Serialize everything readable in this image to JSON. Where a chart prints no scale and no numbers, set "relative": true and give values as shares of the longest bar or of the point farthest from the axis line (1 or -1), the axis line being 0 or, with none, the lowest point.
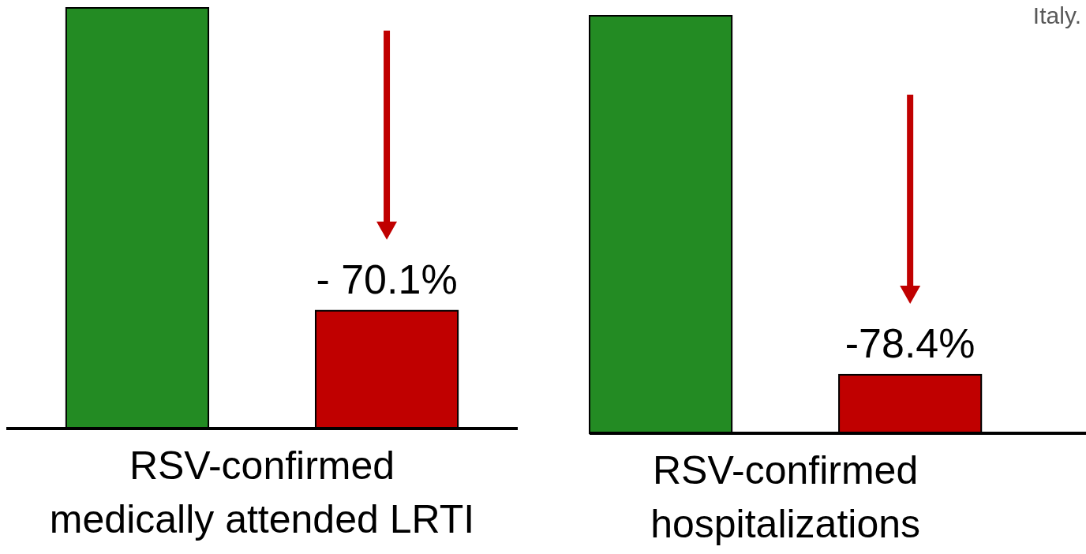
{
  "chart_data": [
    {
      "type": "bar",
      "categories": [
        null,
        null
      ],
      "values": [
        1,
        0.28
      ],
      "colors": [
        "#238b23",
        "#c00000"
      ],
      "relative": true,
      "xlabel": "RSV-confirmed\nmedically attended LRTI",
      "annotations": [
        "- 70.1%"
      ]
    },
    {
      "type": "bar",
      "categories": [
        null,
        null
      ],
      "values": [
        1,
        0.14
      ],
      "colors": [
        "#238b23",
        "#c00000"
      ],
      "relative": true,
      "xlabel": "RSV-confirmed\nhospitalizations",
      "annotations": [
        "-78.4%",
        "Italy."
      ]
    }
  ]
}
